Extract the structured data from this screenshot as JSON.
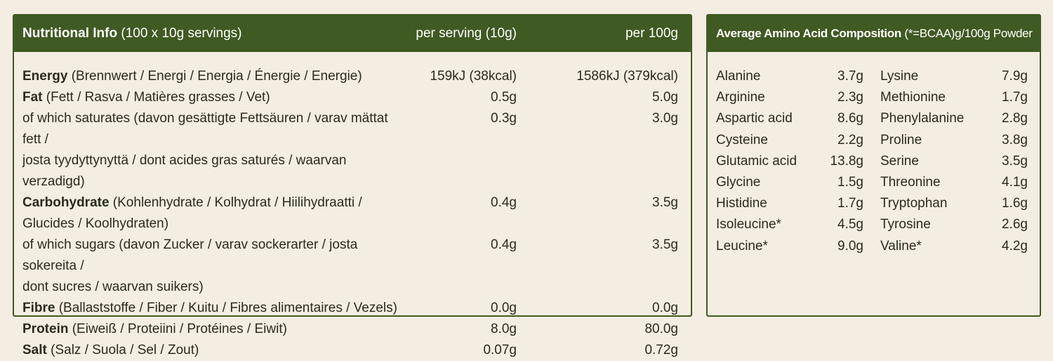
{
  "nutrition": {
    "header": {
      "title_bold": "Nutritional Info",
      "title_rest": " (100 x 10g servings)",
      "col_serving": "per serving (10g)",
      "col_100g": "per 100g"
    },
    "rows": [
      {
        "bold": "Energy",
        "rest": " (Brennwert / Energi / Energia / Énergie / Energie)",
        "cont": "",
        "serving": "159kJ (38kcal)",
        "per100": "1586kJ (379kcal)"
      },
      {
        "bold": "Fat",
        "rest": " (Fett / Rasva / Matières grasses / Vet)",
        "cont": "",
        "serving": "0.5g",
        "per100": "5.0g"
      },
      {
        "bold": "",
        "rest": "of which saturates  (davon gesättigte Fettsäuren / varav mättat fett /",
        "cont": "josta tyydyttynyttä / dont acides gras saturés / waarvan verzadigd)",
        "serving": "0.3g",
        "per100": "3.0g"
      },
      {
        "bold": "Carbohydrate",
        "rest": " (Kohlenhydrate / Kolhydrat / Hiilihydraatti /",
        "cont": "Glucides / Koolhydraten)",
        "serving": "0.4g",
        "per100": "3.5g"
      },
      {
        "bold": "",
        "rest": "of which sugars (davon Zucker / varav sockerarter / josta sokereita /",
        "cont": "dont sucres / waarvan suikers)",
        "serving": "0.4g",
        "per100": "3.5g"
      },
      {
        "bold": "Fibre",
        "rest": " (Ballaststoffe / Fiber / Kuitu / Fibres alimentaires / Vezels)",
        "cont": "",
        "serving": "0.0g",
        "per100": "0.0g"
      },
      {
        "bold": "Protein",
        "rest": " (Eiweiß / Proteiini / Protéines / Eiwit)",
        "cont": "",
        "serving": "8.0g",
        "per100": "80.0g"
      },
      {
        "bold": "Salt",
        "rest": "  (Salz / Suola / Sel / Zout)",
        "cont": "",
        "serving": "0.07g",
        "per100": "0.72g"
      }
    ]
  },
  "amino": {
    "header": {
      "title_bold": "Average Amino Acid Composition",
      "title_rest": " (*=BCAA)g/100g Powder"
    },
    "left": [
      {
        "name": "Alanine",
        "value": "3.7g"
      },
      {
        "name": "Arginine",
        "value": "2.3g"
      },
      {
        "name": "Aspartic acid",
        "value": "8.6g"
      },
      {
        "name": "Cysteine",
        "value": "2.2g"
      },
      {
        "name": "Glutamic acid",
        "value": "13.8g"
      },
      {
        "name": "Glycine",
        "value": "1.5g"
      },
      {
        "name": "Histidine",
        "value": "1.7g"
      },
      {
        "name": "Isoleucine*",
        "value": "4.5g"
      },
      {
        "name": "Leucine*",
        "value": "9.0g"
      }
    ],
    "right": [
      {
        "name": "Lysine",
        "value": "7.9g"
      },
      {
        "name": "Methionine",
        "value": "1.7g"
      },
      {
        "name": "Phenylalanine",
        "value": "2.8g"
      },
      {
        "name": "Proline",
        "value": "3.8g"
      },
      {
        "name": "Serine",
        "value": "3.5g"
      },
      {
        "name": "Threonine",
        "value": "4.1g"
      },
      {
        "name": "Tryptophan",
        "value": "1.6g"
      },
      {
        "name": "Tyrosine",
        "value": "2.6g"
      },
      {
        "name": "Valine*",
        "value": "4.2g"
      }
    ]
  },
  "colors": {
    "header_bg": "#3f5a22",
    "page_bg": "#f4ede2",
    "text": "#2b2b1c"
  }
}
